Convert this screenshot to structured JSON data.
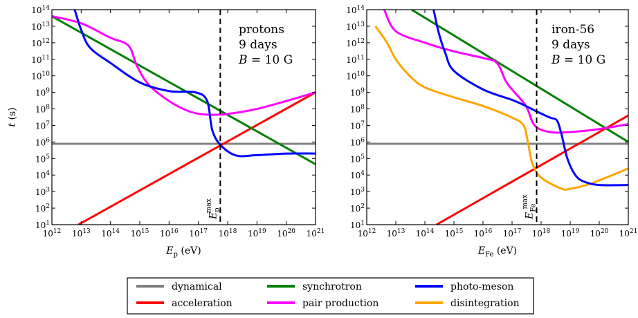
{
  "chart_data": [
    {
      "type": "line",
      "panel": "left",
      "annotation": [
        "protons",
        "9 days",
        "B = 10 G"
      ],
      "xlabel": "E_p (eV)",
      "ylabel": "t (s)",
      "xscale": "log",
      "yscale": "log",
      "xlim": [
        1000000000000.0,
        1e+21
      ],
      "ylim": [
        10.0,
        100000000000000.0
      ],
      "x_ticks": [
        "10^12",
        "10^13",
        "10^14",
        "10^15",
        "10^16",
        "10^17",
        "10^18",
        "10^19",
        "10^20",
        "10^21"
      ],
      "y_ticks": [
        "10^1",
        "10^2",
        "10^3",
        "10^4",
        "10^5",
        "10^6",
        "10^7",
        "10^8",
        "10^9",
        "10^10",
        "10^11",
        "10^12",
        "10^13",
        "10^14"
      ],
      "vline": {
        "x": 5.6e+17,
        "label": "E_p^max"
      },
      "series": [
        {
          "name": "dynamical",
          "color": "#808080",
          "points": [
            [
              1000000000000.0,
              780000.0
            ],
            [
              1e+21,
              780000.0
            ]
          ]
        },
        {
          "name": "acceleration",
          "color": "#ff0000",
          "points": [
            [
              8000000000000.0,
              10.0
            ],
            [
              1e+21,
              1000000000.0
            ]
          ]
        },
        {
          "name": "synchrotron",
          "color": "#008000",
          "points": [
            [
              1000000000000.0,
              40000000000000.0
            ],
            [
              1e+21,
              45000.0
            ]
          ]
        },
        {
          "name": "pair production",
          "color": "#ff00ff",
          "points": [
            [
              1000000000000.0,
              40000000000000.0
            ],
            [
              10000000000000.0,
              15000000000000.0
            ],
            [
              100000000000000.0,
              2000000000000.0
            ],
            [
              300000000000000.0,
              1000000000000.0
            ],
            [
              500000000000000.0,
              400000000000.0
            ],
            [
              800000000000000.0,
              40000000000.0
            ],
            [
              2000000000000000.0,
              3000000000.0
            ],
            [
              1e+16,
              300000000.0
            ],
            [
              5e+16,
              70000000.0
            ],
            [
              2e+17,
              45000000.0
            ],
            [
              1e+18,
              50000000.0
            ],
            [
              1e+19,
              100000000.0
            ],
            [
              1e+20,
              300000000.0
            ],
            [
              1e+21,
              1000000000.0
            ]
          ]
        },
        {
          "name": "photo-meson",
          "color": "#0000ff",
          "points": [
            [
              6000000000000.0,
              100000000000000.0
            ],
            [
              10000000000000.0,
              6000000000000.0
            ],
            [
              20000000000000.0,
              500000000000.0
            ],
            [
              100000000000000.0,
              60000000000.0
            ],
            [
              1000000000000000.0,
              4000000000.0
            ],
            [
              1e+16,
              1200000000.0
            ],
            [
              8e+16,
              1000000000.0
            ],
            [
              2e+17,
              300000000.0
            ],
            [
              3e+17,
              5000000.0
            ],
            [
              6e+17,
              600000.0
            ],
            [
              2e+18,
              150000.0
            ],
            [
              1e+19,
              160000.0
            ],
            [
              1e+20,
              200000.0
            ],
            [
              1e+21,
              200000.0
            ]
          ]
        }
      ]
    },
    {
      "type": "line",
      "panel": "right",
      "annotation": [
        "iron-56",
        "9 days",
        "B = 10 G"
      ],
      "xlabel": "E_Fe (eV)",
      "ylabel": "",
      "xscale": "log",
      "yscale": "log",
      "xlim": [
        1000000000000.0,
        1e+21
      ],
      "ylim": [
        10.0,
        100000000000000.0
      ],
      "x_ticks": [
        "10^12",
        "10^13",
        "10^14",
        "10^15",
        "10^16",
        "10^17",
        "10^18",
        "10^19",
        "10^20",
        "10^21"
      ],
      "y_ticks": [
        "10^1",
        "10^2",
        "10^3",
        "10^4",
        "10^5",
        "10^6",
        "10^7",
        "10^8",
        "10^9",
        "10^10",
        "10^11",
        "10^12",
        "10^13",
        "10^14"
      ],
      "vline": {
        "x": 7e+17,
        "label": "E_Fe^max"
      },
      "series": [
        {
          "name": "dynamical",
          "color": "#808080",
          "points": [
            [
              1000000000000.0,
              780000.0
            ],
            [
              1e+21,
              780000.0
            ]
          ]
        },
        {
          "name": "acceleration",
          "color": "#ff0000",
          "points": [
            [
              250000000000000.0,
              10.0
            ],
            [
              1e+21,
              40000000.0
            ]
          ]
        },
        {
          "name": "synchrotron",
          "color": "#008000",
          "points": [
            [
              35000000000000.0,
              100000000000000.0
            ],
            [
              1e+21,
              1000000.0
            ]
          ]
        },
        {
          "name": "pair production",
          "color": "#ff00ff",
          "points": [
            [
              4000000000000.0,
              100000000000000.0
            ],
            [
              10000000000000.0,
              5000000000000.0
            ],
            [
              100000000000000.0,
              1000000000000.0
            ],
            [
              1000000000000000.0,
              300000000000.0
            ],
            [
              1e+16,
              120000000000.0
            ],
            [
              3e+16,
              60000000000.0
            ],
            [
              6e+16,
              5000000000.0
            ],
            [
              1e+17,
              1500000000.0
            ],
            [
              3e+17,
              150000000.0
            ],
            [
              6e+17,
              10000000.0
            ],
            [
              2e+18,
              4000000.0
            ],
            [
              1e+19,
              4000000.0
            ],
            [
              1e+20,
              6000000.0
            ],
            [
              1e+21,
              12000000.0
            ]
          ]
        },
        {
          "name": "photo-meson",
          "color": "#0000ff",
          "points": [
            [
              200000000000000.0,
              100000000000000.0
            ],
            [
              300000000000000.0,
              4000000000000.0
            ],
            [
              500000000000000.0,
              250000000000.0
            ],
            [
              1000000000000000.0,
              20000000000.0
            ],
            [
              1e+16,
              1500000000.0
            ],
            [
              1e+17,
              350000000.0
            ],
            [
              3e+17,
              150000000.0
            ],
            [
              6e+17,
              80000000.0
            ],
            [
              2e+18,
              30000000.0
            ],
            [
              3.5e+18,
              20000000.0
            ],
            [
              5e+18,
              3000000.0
            ],
            [
              8e+18,
              100000.0
            ],
            [
              1.5e+19,
              10000.0
            ],
            [
              3e+19,
              4000.0
            ],
            [
              1e+20,
              2500.0
            ],
            [
              1e+21,
              2500.0
            ]
          ]
        },
        {
          "name": "disintegration",
          "color": "#ffa500",
          "points": [
            [
              2000000000000.0,
              10000000000000.0
            ],
            [
              5000000000000.0,
              1000000000000.0
            ],
            [
              10000000000000.0,
              100000000000.0
            ],
            [
              30000000000000.0,
              10000000000.0
            ],
            [
              100000000000000.0,
              2000000000.0
            ],
            [
              1000000000000000.0,
              500000000.0
            ],
            [
              1e+16,
              150000000.0
            ],
            [
              1e+17,
              30000000.0
            ],
            [
              2.5e+17,
              10000000.0
            ],
            [
              3.5e+17,
              1000000.0
            ],
            [
              5e+17,
              50000.0
            ],
            [
              1e+18,
              7000.0
            ],
            [
              5e+18,
              1500.0
            ],
            [
              1e+19,
              1500.0
            ],
            [
              5e+19,
              3000.0
            ],
            [
              1e+21,
              25000.0
            ]
          ]
        }
      ]
    }
  ],
  "legend": {
    "entries": [
      {
        "name": "dynamical",
        "color": "#808080"
      },
      {
        "name": "synchrotron",
        "color": "#008000"
      },
      {
        "name": "photo-meson",
        "color": "#0000ff"
      },
      {
        "name": "acceleration",
        "color": "#ff0000"
      },
      {
        "name": "pair production",
        "color": "#ff00ff"
      },
      {
        "name": "disintegration",
        "color": "#ffa500"
      }
    ]
  }
}
